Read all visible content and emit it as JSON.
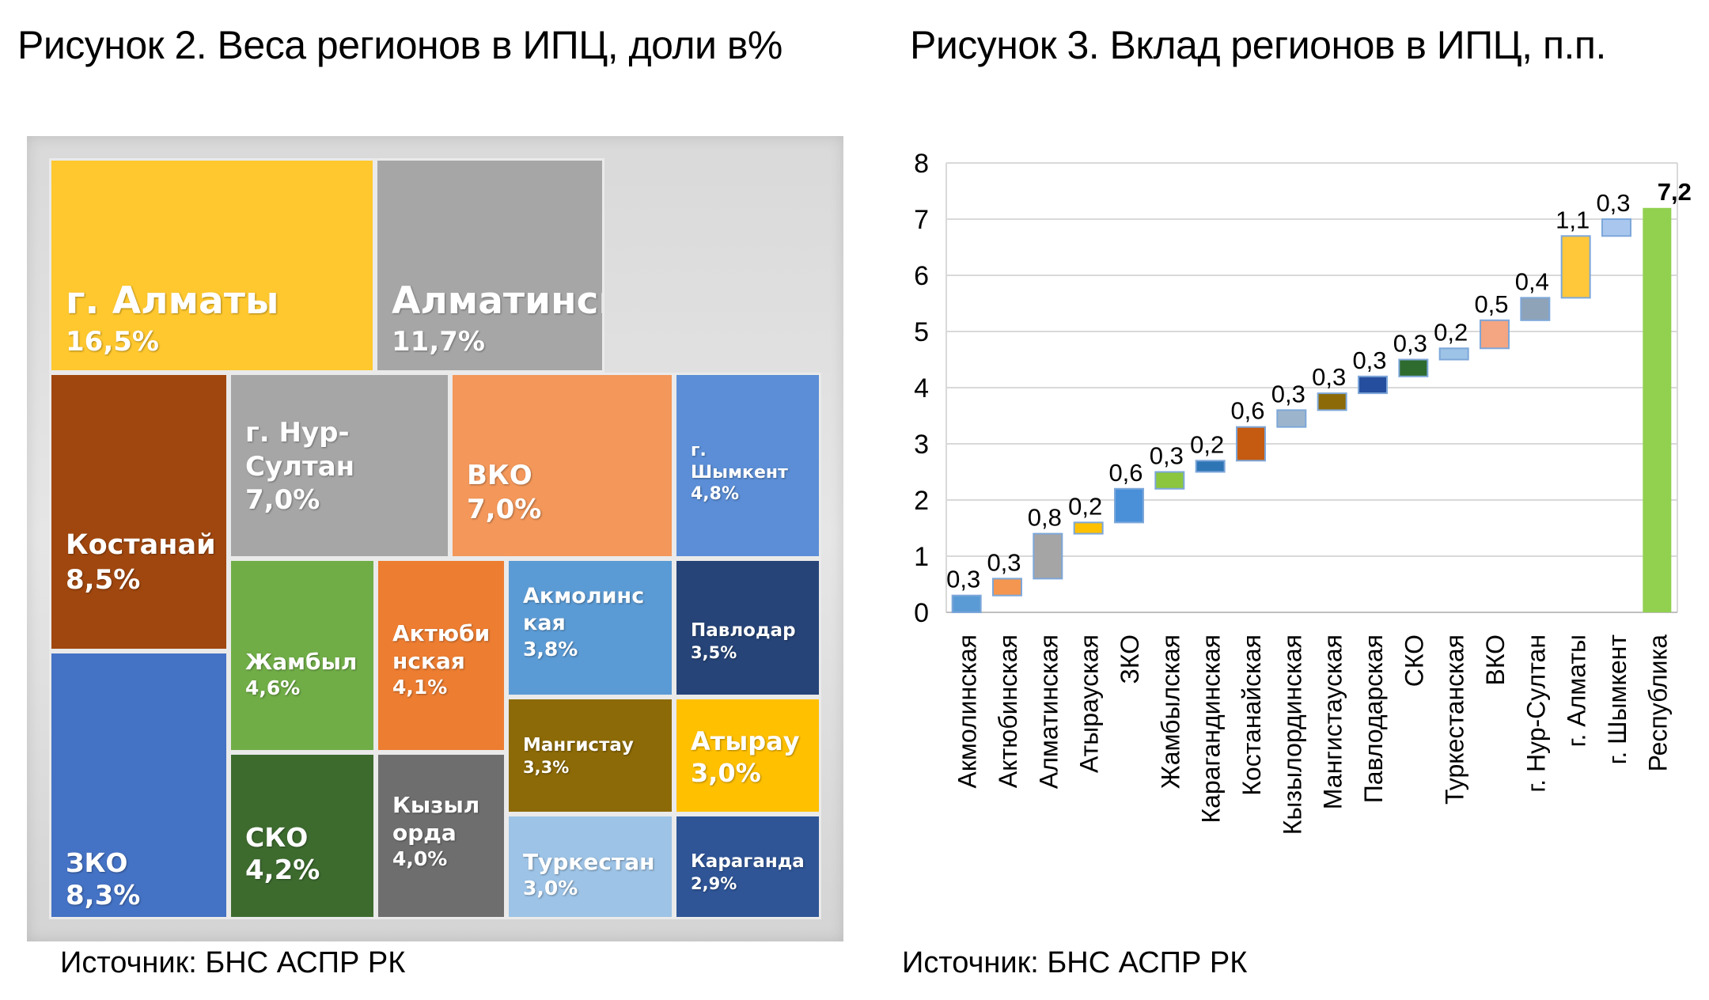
{
  "titles": {
    "left": "Рисунок 2. Веса регионов в ИПЦ, доли в%",
    "right": "Рисунок 3. Вклад регионов в ИПЦ, п.п."
  },
  "sources": {
    "left": "Источник: БНС АСПР РК",
    "right": "Источник: БНС АСПР РК"
  },
  "chart_data": [
    {
      "type": "treemap",
      "title": "Рисунок 2. Веса регионов в ИПЦ, доли в%",
      "items": [
        {
          "name": "г. Алматы",
          "value": "16,5%",
          "color": "#FFC82E"
        },
        {
          "name": "Алматинская",
          "value": "11,7%",
          "color": "#A6A6A6"
        },
        {
          "name": "Костанай",
          "value": "8,5%",
          "color": "#A0470F"
        },
        {
          "name": "ЗКО",
          "value": "8,3%",
          "color": "#4472C4"
        },
        {
          "name": "г. Нур-\nСултан",
          "value": "7,0%",
          "color": "#A6A6A6"
        },
        {
          "name": "ВКО",
          "value": "7,0%",
          "color": "#F3975A"
        },
        {
          "name": "г.\nШымкент",
          "value": "4,8%",
          "color": "#5B8ED6"
        },
        {
          "name": "Жамбыл",
          "value": "4,6%",
          "color": "#70AD47"
        },
        {
          "name": "СКО",
          "value": "4,2%",
          "color": "#3D6B2E"
        },
        {
          "name": "Актюби\nнская",
          "value": "4,1%",
          "color": "#ED7D31"
        },
        {
          "name": "Кызыл\nорда",
          "value": "4,0%",
          "color": "#6E6E6E"
        },
        {
          "name": "Акмолинс\nкая",
          "value": "3,8%",
          "color": "#5B9BD5"
        },
        {
          "name": "Павлодар",
          "value": "3,5%",
          "color": "#264478"
        },
        {
          "name": "Мангистау",
          "value": "3,3%",
          "color": "#8C6A07"
        },
        {
          "name": "Атырау",
          "value": "3,0%",
          "color": "#FFC000"
        },
        {
          "name": "Туркестан",
          "value": "3,0%",
          "color": "#9DC3E6"
        },
        {
          "name": "Караганда",
          "value": "2,9%",
          "color": "#2F5597"
        }
      ]
    },
    {
      "type": "waterfall",
      "title": "Рисунок 3. Вклад регионов в ИПЦ, п.п.",
      "ylim": [
        0,
        8
      ],
      "yticks": [
        "0",
        "1",
        "2",
        "3",
        "4",
        "5",
        "6",
        "7",
        "8"
      ],
      "grid": true,
      "categories": [
        "Акмолинская",
        "Актюбинская",
        "Алматинская",
        "Атырауская",
        "ЗКО",
        "Жамбылская",
        "Карагандинская",
        "Костанайская",
        "Кызылординская",
        "Мангистауская",
        "Павлодарская",
        "СКО",
        "Туркестанская",
        "ВКО",
        "г. Нур-Султан",
        "г. Алматы",
        "г. Шымкент",
        "Республика"
      ],
      "values": [
        0.3,
        0.3,
        0.8,
        0.2,
        0.6,
        0.3,
        0.2,
        0.6,
        0.3,
        0.3,
        0.3,
        0.3,
        0.2,
        0.5,
        0.4,
        1.1,
        0.3,
        7.2
      ],
      "labels": [
        "0,3",
        "0,3",
        "0,8",
        "0,2",
        "0,6",
        "0,3",
        "0,2",
        "0,6",
        "0,3",
        "0,3",
        "0,3",
        "0,3",
        "0,2",
        "0,5",
        "0,4",
        "1,1",
        "0,3",
        "7,2"
      ],
      "total_index": 17,
      "colors": [
        "#5B9BD5",
        "#F4964F",
        "#A5A5A5",
        "#FFC000",
        "#4A90D9",
        "#8CC63F",
        "#2E75B6",
        "#C55A11",
        "#9DB5CC",
        "#8C6A07",
        "#264E9E",
        "#2E6B2E",
        "#9DC3E6",
        "#F4A582",
        "#8FA3B8",
        "#FFC83A",
        "#A9C7EE",
        "#92D050"
      ],
      "border_color": "#7DA7D9"
    }
  ]
}
